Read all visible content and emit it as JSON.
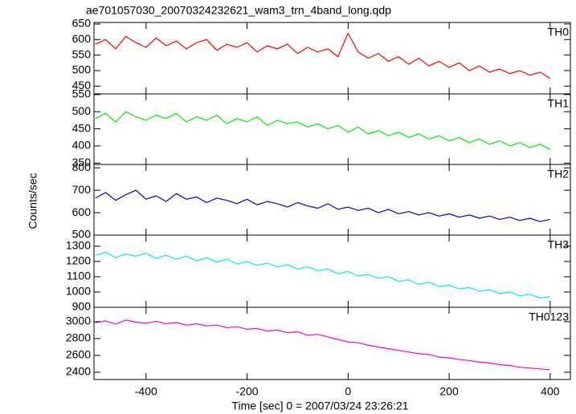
{
  "chart_data": [
    {
      "type": "line",
      "title": "ae701057030_20070324232621_wam3_trn_4band_long.qdp",
      "label": "TH0",
      "color": "#ff0000",
      "x": [
        -500,
        -480,
        -460,
        -440,
        -420,
        -400,
        -380,
        -360,
        -340,
        -320,
        -300,
        -280,
        -260,
        -240,
        -220,
        -200,
        -180,
        -160,
        -140,
        -120,
        -100,
        -80,
        -60,
        -40,
        -20,
        0,
        20,
        40,
        60,
        80,
        100,
        120,
        140,
        160,
        180,
        200,
        220,
        240,
        260,
        280,
        300,
        320,
        340,
        360,
        380,
        400
      ],
      "values": [
        585,
        600,
        570,
        610,
        590,
        575,
        605,
        580,
        595,
        570,
        590,
        600,
        565,
        585,
        575,
        590,
        560,
        580,
        570,
        585,
        555,
        575,
        560,
        570,
        545,
        620,
        560,
        540,
        555,
        530,
        545,
        520,
        540,
        515,
        530,
        510,
        525,
        500,
        515,
        495,
        505,
        490,
        500,
        485,
        495,
        475
      ],
      "xlim": [
        -503,
        440
      ],
      "xticks": [
        -400,
        -200,
        0,
        200,
        400
      ],
      "ylim": [
        425,
        655
      ],
      "yticks": [
        450,
        500,
        550,
        600,
        650
      ]
    },
    {
      "type": "line",
      "label": "TH1",
      "color": "#00ee00",
      "x": [
        -500,
        -480,
        -460,
        -440,
        -420,
        -400,
        -380,
        -360,
        -340,
        -320,
        -300,
        -280,
        -260,
        -240,
        -220,
        -200,
        -180,
        -160,
        -140,
        -120,
        -100,
        -80,
        -60,
        -40,
        -20,
        0,
        20,
        40,
        60,
        80,
        100,
        120,
        140,
        160,
        180,
        200,
        220,
        240,
        260,
        280,
        300,
        320,
        340,
        360,
        380,
        400
      ],
      "values": [
        480,
        495,
        470,
        500,
        485,
        475,
        490,
        480,
        495,
        470,
        485,
        475,
        490,
        465,
        480,
        470,
        485,
        460,
        475,
        465,
        470,
        455,
        465,
        450,
        460,
        440,
        455,
        435,
        445,
        430,
        440,
        425,
        435,
        420,
        430,
        415,
        425,
        410,
        420,
        405,
        415,
        400,
        410,
        395,
        405,
        390
      ],
      "xlim": [
        -503,
        440
      ],
      "xticks": [
        -400,
        -200,
        0,
        200,
        400
      ],
      "ylim": [
        346,
        552
      ],
      "yticks": [
        350,
        400,
        450,
        500,
        550
      ]
    },
    {
      "type": "line",
      "label": "TH2",
      "color": "#0000dd",
      "y_label": "Counts/sec",
      "x": [
        -500,
        -480,
        -460,
        -440,
        -420,
        -400,
        -380,
        -360,
        -340,
        -320,
        -300,
        -280,
        -260,
        -240,
        -220,
        -200,
        -180,
        -160,
        -140,
        -120,
        -100,
        -80,
        -60,
        -40,
        -20,
        0,
        20,
        40,
        60,
        80,
        100,
        120,
        140,
        160,
        180,
        200,
        220,
        240,
        260,
        280,
        300,
        320,
        340,
        360,
        380,
        400
      ],
      "values": [
        665,
        690,
        655,
        680,
        700,
        660,
        675,
        650,
        685,
        660,
        670,
        645,
        665,
        655,
        640,
        660,
        635,
        650,
        640,
        625,
        645,
        630,
        620,
        640,
        615,
        625,
        610,
        620,
        600,
        615,
        595,
        605,
        590,
        600,
        585,
        595,
        580,
        590,
        575,
        585,
        570,
        580,
        565,
        575,
        560,
        570
      ],
      "xlim": [
        -503,
        440
      ],
      "xticks": [
        -400,
        -200,
        0,
        200,
        400
      ],
      "ylim": [
        500,
        815
      ],
      "yticks": [
        500,
        600,
        700,
        800
      ]
    },
    {
      "type": "line",
      "label": "TH3",
      "color": "#00eeee",
      "x": [
        -500,
        -480,
        -460,
        -440,
        -420,
        -400,
        -380,
        -360,
        -340,
        -320,
        -300,
        -280,
        -260,
        -240,
        -220,
        -200,
        -180,
        -160,
        -140,
        -120,
        -100,
        -80,
        -60,
        -40,
        -20,
        0,
        20,
        40,
        60,
        80,
        100,
        120,
        140,
        160,
        180,
        200,
        220,
        240,
        260,
        280,
        300,
        320,
        340,
        360,
        380,
        400
      ],
      "values": [
        1240,
        1260,
        1225,
        1250,
        1235,
        1255,
        1220,
        1240,
        1215,
        1235,
        1205,
        1225,
        1195,
        1215,
        1185,
        1200,
        1175,
        1190,
        1165,
        1180,
        1150,
        1165,
        1140,
        1150,
        1120,
        1135,
        1105,
        1115,
        1090,
        1100,
        1070,
        1080,
        1050,
        1065,
        1035,
        1045,
        1020,
        1030,
        1005,
        1015,
        990,
        1000,
        975,
        985,
        960,
        970
      ],
      "xlim": [
        -503,
        440
      ],
      "xticks": [
        -400,
        -200,
        0,
        200,
        400
      ],
      "ylim": [
        900,
        1373
      ],
      "yticks": [
        900,
        1000,
        1100,
        1200,
        1300
      ]
    },
    {
      "type": "line",
      "label": "TH0123",
      "color": "#ee00ee",
      "x_label": "Time [sec] 0 = 2007/03/24 23:26:21",
      "x": [
        -500,
        -480,
        -460,
        -440,
        -420,
        -400,
        -380,
        -360,
        -340,
        -320,
        -300,
        -280,
        -260,
        -240,
        -220,
        -200,
        -180,
        -160,
        -140,
        -120,
        -100,
        -80,
        -60,
        -40,
        -20,
        0,
        20,
        40,
        60,
        80,
        100,
        120,
        140,
        160,
        180,
        200,
        220,
        240,
        260,
        280,
        300,
        320,
        340,
        360,
        380,
        400
      ],
      "values": [
        2990,
        3010,
        2970,
        3020,
        2995,
        2980,
        3005,
        2975,
        2990,
        2960,
        2975,
        2950,
        2960,
        2930,
        2940,
        2910,
        2920,
        2890,
        2900,
        2870,
        2880,
        2840,
        2850,
        2820,
        2790,
        2760,
        2750,
        2720,
        2700,
        2680,
        2660,
        2640,
        2620,
        2610,
        2580,
        2570,
        2550,
        2540,
        2520,
        2510,
        2490,
        2480,
        2460,
        2450,
        2440,
        2430
      ],
      "xlim": [
        -503,
        440
      ],
      "xticks": [
        -400,
        -200,
        0,
        200,
        400
      ],
      "ylim": [
        2314,
        3171
      ],
      "yticks": [
        2400,
        2600,
        2800,
        3000
      ]
    }
  ]
}
